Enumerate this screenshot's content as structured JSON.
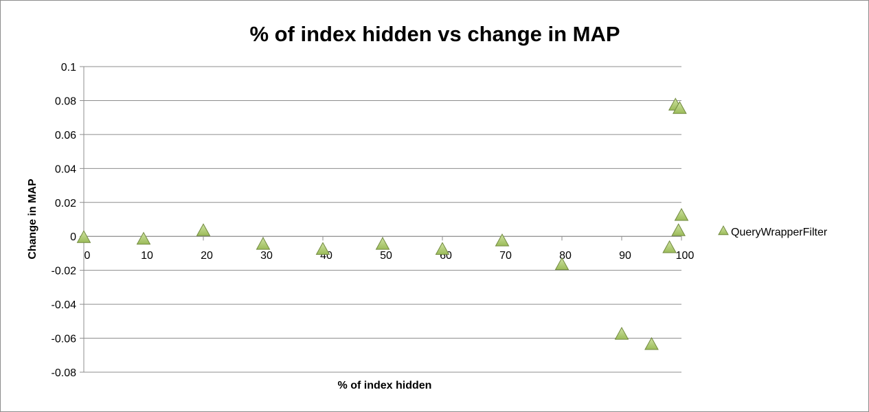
{
  "chart_data": {
    "type": "scatter",
    "title": "% of index hidden vs change in MAP",
    "xlabel": "% of index hidden",
    "ylabel": "Change in MAP",
    "xlim": [
      0,
      100
    ],
    "ylim": [
      -0.08,
      0.1
    ],
    "x_ticks": [
      "0",
      "10",
      "20",
      "30",
      "40",
      "50",
      "60",
      "70",
      "80",
      "90",
      "100"
    ],
    "y_ticks": [
      "0.1",
      "0.08",
      "0.06",
      "0.04",
      "0.02",
      "0",
      "-0.02",
      "-0.04",
      "-0.06",
      "-0.08"
    ],
    "grid": "horizontal",
    "legend_position": "right",
    "marker": "triangle",
    "marker_color": "#9bbb59",
    "series": [
      {
        "name": "QueryWrapperFilter",
        "points": [
          {
            "x": 0,
            "y": -0.001
          },
          {
            "x": 10,
            "y": -0.002
          },
          {
            "x": 20,
            "y": 0.003
          },
          {
            "x": 30,
            "y": -0.005
          },
          {
            "x": 40,
            "y": -0.008
          },
          {
            "x": 50,
            "y": -0.005
          },
          {
            "x": 60,
            "y": -0.008
          },
          {
            "x": 70,
            "y": -0.003
          },
          {
            "x": 80,
            "y": -0.017
          },
          {
            "x": 90,
            "y": -0.058
          },
          {
            "x": 95,
            "y": -0.064
          },
          {
            "x": 98,
            "y": -0.007
          },
          {
            "x": 99,
            "y": 0.077
          },
          {
            "x": 99.5,
            "y": 0.003
          },
          {
            "x": 99.7,
            "y": 0.075
          },
          {
            "x": 100,
            "y": 0.012
          }
        ]
      }
    ]
  }
}
